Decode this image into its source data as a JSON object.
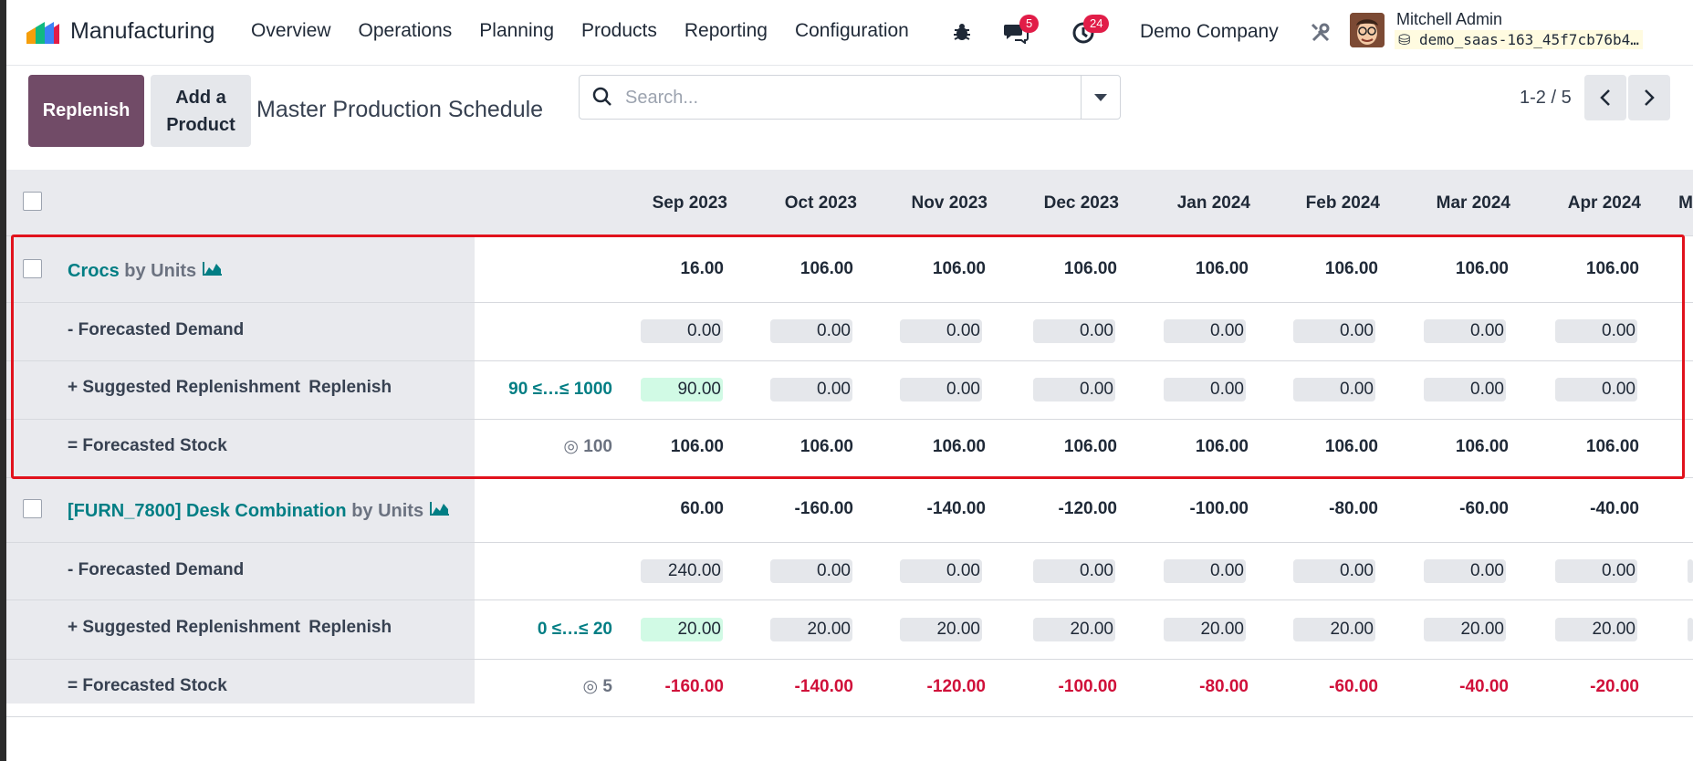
{
  "navbar": {
    "app_name": "Manufacturing",
    "menu": [
      "Overview",
      "Operations",
      "Planning",
      "Products",
      "Reporting",
      "Configuration"
    ],
    "messages_count": "5",
    "activities_count": "24",
    "company": "Demo Company",
    "user_name": "Mitchell Admin",
    "database": "demo_saas-163_45f7cb76b4…"
  },
  "control": {
    "replenish_label": "Replenish",
    "add_product_label": "Add a Product",
    "title": "Master Production Schedule",
    "search_placeholder": "Search...",
    "pager": "1-2 / 5"
  },
  "months": [
    "Sep 2023",
    "Oct 2023",
    "Nov 2023",
    "Dec 2023",
    "Jan 2024",
    "Feb 2024",
    "Mar 2024",
    "Apr 2024",
    "M"
  ],
  "products": [
    {
      "name": "Crocs",
      "uom": "by Units",
      "starting": [
        "16.00",
        "106.00",
        "106.00",
        "106.00",
        "106.00",
        "106.00",
        "106.00",
        "106.00"
      ],
      "demand_label": "- Forecasted Demand",
      "demand": [
        "0.00",
        "0.00",
        "0.00",
        "0.00",
        "0.00",
        "0.00",
        "0.00",
        "0.00"
      ],
      "replenish_label": "+ Suggested Replenishment",
      "replenish_link": "Replenish",
      "range": "90 ≤…≤ 1000",
      "replenish": [
        "90.00",
        "0.00",
        "0.00",
        "0.00",
        "0.00",
        "0.00",
        "0.00",
        "0.00"
      ],
      "stock_label": "= Forecasted Stock",
      "safety_stock": "100",
      "stock": [
        "106.00",
        "106.00",
        "106.00",
        "106.00",
        "106.00",
        "106.00",
        "106.00",
        "106.00"
      ]
    },
    {
      "name": "[FURN_7800] Desk Combination",
      "uom": "by Units",
      "starting": [
        "60.00",
        "-160.00",
        "-140.00",
        "-120.00",
        "-100.00",
        "-80.00",
        "-60.00",
        "-40.00"
      ],
      "demand_label": "- Forecasted Demand",
      "demand": [
        "240.00",
        "0.00",
        "0.00",
        "0.00",
        "0.00",
        "0.00",
        "0.00",
        "0.00"
      ],
      "replenish_label": "+ Suggested Replenishment",
      "replenish_link": "Replenish",
      "range": "0 ≤…≤ 20",
      "replenish": [
        "20.00",
        "20.00",
        "20.00",
        "20.00",
        "20.00",
        "20.00",
        "20.00",
        "20.00"
      ],
      "stock_label": "= Forecasted Stock",
      "safety_stock": "5",
      "stock": [
        "-160.00",
        "-140.00",
        "-120.00",
        "-100.00",
        "-80.00",
        "-60.00",
        "-40.00",
        "-20.00"
      ]
    }
  ],
  "colors": {
    "primary": "#714b67",
    "link": "#017e84",
    "negative": "#d0103a",
    "highlight": "#e1121c"
  }
}
